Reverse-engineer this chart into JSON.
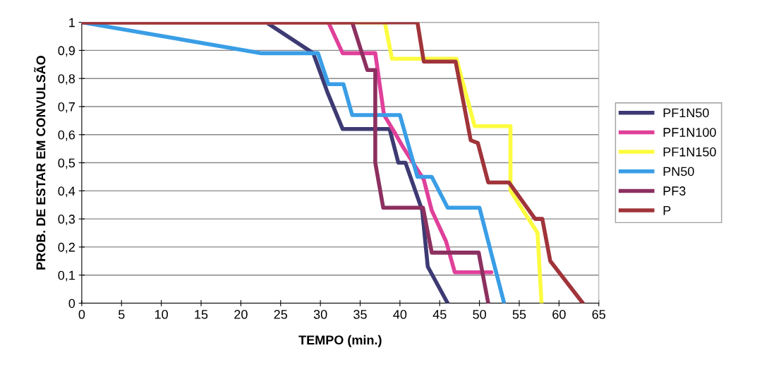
{
  "chart_data": {
    "type": "line",
    "xlabel": "TEMPO (min.)",
    "ylabel": "PROB. DE ESTAR EM CONVULSÃO",
    "xlim": [
      0,
      65
    ],
    "ylim": [
      0,
      1
    ],
    "xticks": [
      0,
      5,
      10,
      15,
      20,
      25,
      30,
      35,
      40,
      45,
      50,
      55,
      60,
      65
    ],
    "yticks": [
      0,
      {
        "value": 0.1,
        "label": "0,1"
      },
      {
        "value": 0.2,
        "label": "0,2"
      },
      {
        "value": 0.3,
        "label": "0,3"
      },
      {
        "value": 0.4,
        "label": "0,4"
      },
      {
        "value": 0.5,
        "label": "0,5"
      },
      {
        "value": 0.6,
        "label": "0,6"
      },
      {
        "value": 0.7,
        "label": "0,7"
      },
      {
        "value": 0.8,
        "label": "0,8"
      },
      {
        "value": 0.9,
        "label": "0,9"
      },
      1
    ],
    "grid": "y",
    "legend": "right",
    "marker": "none",
    "line_style": "solid",
    "series": [
      {
        "name": "PF1N50",
        "color": "#3d3a73",
        "x": [
          0,
          23.2,
          29.1,
          30.9,
          32.8,
          38.7,
          39.8,
          40.7,
          42.8,
          43.5,
          46
        ],
        "values": [
          1,
          1,
          0.89,
          0.75,
          0.62,
          0.62,
          0.5,
          0.5,
          0.33,
          0.13,
          0
        ]
      },
      {
        "name": "PF1N100",
        "color": "#e0409a",
        "x": [
          0,
          31,
          32.8,
          36.9,
          38,
          39.5,
          40.3,
          43,
          44,
          45.8,
          46.9,
          51.5
        ],
        "values": [
          1,
          1,
          0.89,
          0.89,
          0.67,
          0.6,
          0.56,
          0.44,
          0.33,
          0.22,
          0.11,
          0.11
        ]
      },
      {
        "name": "PF1N150",
        "color": "#fcfc40",
        "x": [
          0,
          38.1,
          39,
          47.1,
          49.4,
          53.9,
          53.9,
          57.3,
          57.8
        ],
        "values": [
          1,
          1,
          0.87,
          0.87,
          0.63,
          0.63,
          0.4,
          0.25,
          0
        ]
      },
      {
        "name": "PN50",
        "color": "#3a9ee6",
        "x": [
          0,
          22.6,
          29.7,
          31,
          32.9,
          34,
          40,
          42.2,
          44,
          46,
          50,
          53.1
        ],
        "values": [
          1,
          0.89,
          0.89,
          0.78,
          0.78,
          0.67,
          0.67,
          0.45,
          0.45,
          0.34,
          0.34,
          0
        ]
      },
      {
        "name": "PF3",
        "color": "#8c3060",
        "x": [
          0,
          34,
          35.9,
          36.9,
          36.9,
          37.9,
          42.9,
          44,
          49.9,
          51.1
        ],
        "values": [
          1,
          1,
          0.83,
          0.83,
          0.5,
          0.34,
          0.34,
          0.18,
          0.18,
          0
        ]
      },
      {
        "name": "P",
        "color": "#a0343a",
        "x": [
          0,
          42.2,
          43,
          47,
          48.9,
          49.8,
          51.1,
          53.7,
          57,
          57.9,
          58.9,
          63
        ],
        "values": [
          1,
          1,
          0.86,
          0.86,
          0.58,
          0.57,
          0.43,
          0.43,
          0.3,
          0.3,
          0.15,
          0
        ]
      }
    ]
  }
}
